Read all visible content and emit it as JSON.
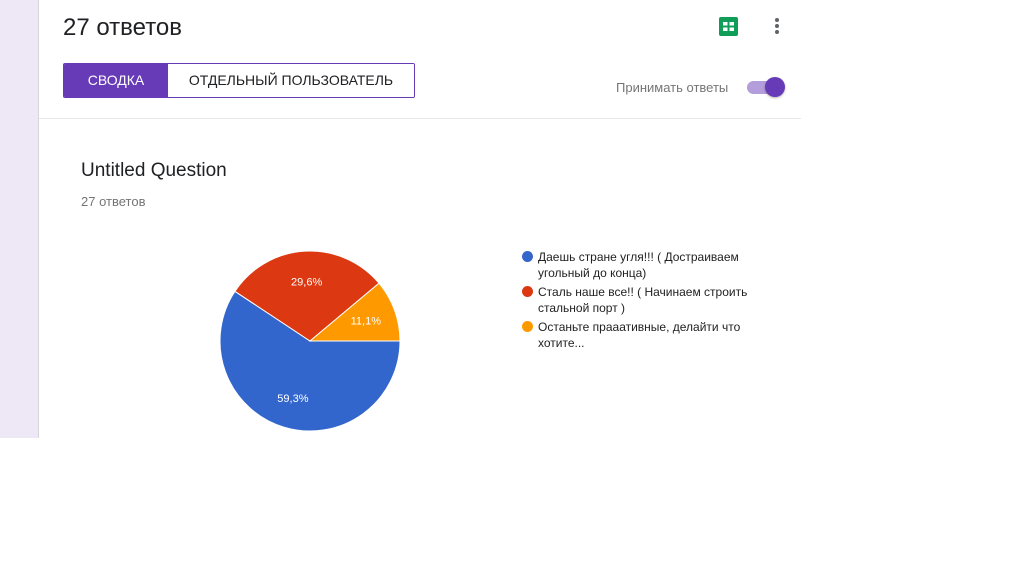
{
  "header": {
    "responses_title": "27 ответов",
    "sheets_icon": "google-sheets-icon",
    "more_icon": "more-vert-icon"
  },
  "tabs": [
    {
      "label": "СВОДКА",
      "active": true
    },
    {
      "label": "ОТДЕЛЬНЫЙ ПОЛЬЗОВАТЕЛЬ",
      "active": false
    }
  ],
  "accept_responses": {
    "label": "Принимать ответы",
    "enabled": true
  },
  "question": {
    "title": "Untitled Question",
    "count": "27 ответов"
  },
  "colors": {
    "accent": "#673ab7",
    "toggle_track": "#b39ddb",
    "sheets_green": "#0f9d58"
  },
  "chart_data": {
    "type": "pie",
    "slices": [
      {
        "label": "Даешь стране угля!!! ( Достраиваем угольный до конца)",
        "value": 59.3,
        "value_label": "59,3%",
        "color": "#3366cc"
      },
      {
        "label": "Сталь наше все!! ( Начинаем строить стальной порт )",
        "value": 29.6,
        "value_label": "29,6%",
        "color": "#dc3912"
      },
      {
        "label": "Останьте прааативные, делайти что хотите...",
        "value": 11.1,
        "value_label": "11,1%",
        "color": "#ff9900"
      }
    ],
    "legend_position": "right"
  }
}
